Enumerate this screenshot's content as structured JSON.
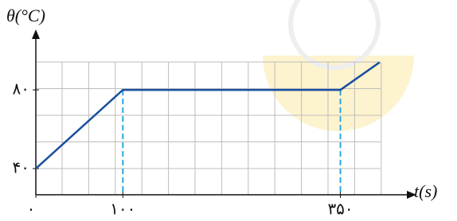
{
  "chart_data": {
    "type": "line",
    "y_label": "θ(°C)",
    "x_label": "t(s)",
    "x": [
      0,
      100,
      350,
      395
    ],
    "series": [
      {
        "values": [
          40,
          80,
          80,
          94
        ],
        "color": "#1a4f9e"
      }
    ],
    "xlim": [
      0,
      430
    ],
    "ylim": [
      26.7,
      107.5
    ],
    "xticks": [
      {
        "value": 0,
        "label": "۰"
      },
      {
        "value": 100,
        "label": "۱۰۰"
      },
      {
        "value": 350,
        "label": "۳۵۰"
      }
    ],
    "yticks": [
      {
        "value": 40,
        "label": "۴۰"
      },
      {
        "value": 80,
        "label": "۸۰"
      }
    ],
    "dashed_x": [
      100,
      350
    ],
    "dash_color": "#29a8e0"
  }
}
